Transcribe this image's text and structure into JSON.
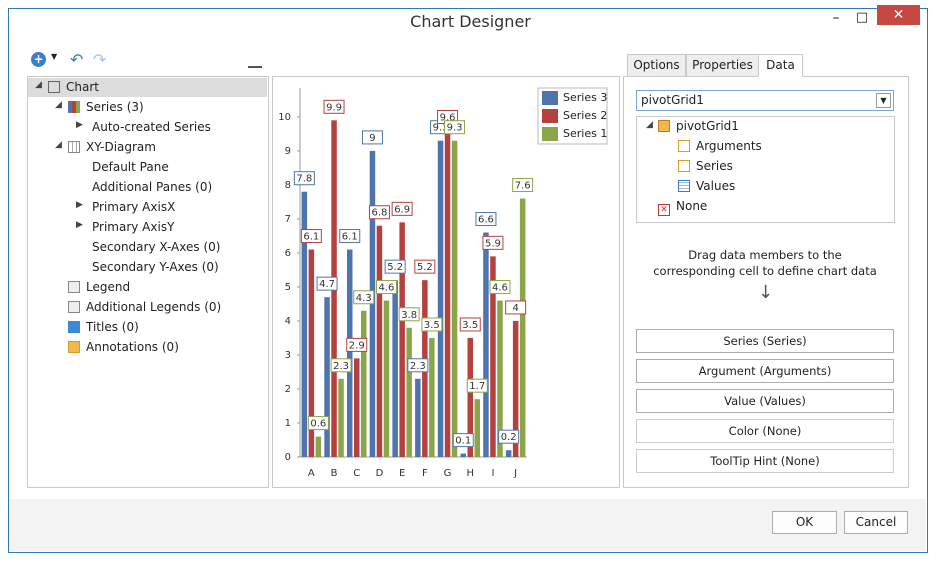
{
  "window": {
    "title": "Chart Designer"
  },
  "tree": [
    "Chart",
    "Series (3)",
    "Auto-created Series",
    "XY-Diagram",
    "Default Pane",
    "Additional Panes (0)",
    "Primary AxisX",
    "Primary AxisY",
    "Secondary X-Axes (0)",
    "Secondary Y-Axes (0)",
    "Legend",
    "Additional Legends (0)",
    "Titles (0)",
    "Annotations (0)"
  ],
  "tabs": [
    "Options",
    "Properties",
    "Data"
  ],
  "datasource": "pivotGrid1",
  "fields": [
    "pivotGrid1",
    "Arguments",
    "Series",
    "Values",
    "None"
  ],
  "hint": "Drag data members to the corresponding cell to define chart data",
  "bindings": [
    "Series (Series)",
    "Argument (Arguments)",
    "Value (Values)",
    "Color (None)",
    "ToolTip Hint (None)"
  ],
  "buttons": [
    "OK",
    "Cancel"
  ],
  "chart_data": {
    "type": "bar",
    "categories": [
      "A",
      "B",
      "C",
      "D",
      "E",
      "F",
      "G",
      "H",
      "I",
      "J"
    ],
    "series": [
      {
        "name": "Series 3",
        "color": "#4f74ad",
        "values": [
          7.8,
          4.7,
          6.1,
          9,
          5.2,
          2.3,
          9.3,
          0.1,
          6.6,
          0.2
        ]
      },
      {
        "name": "Series 2",
        "color": "#b5413f",
        "values": [
          6.1,
          9.9,
          2.9,
          6.8,
          6.9,
          5.2,
          9.6,
          3.5,
          5.9,
          4
        ]
      },
      {
        "name": "Series 1",
        "color": "#8ba64a",
        "values": [
          0.6,
          2.3,
          4.3,
          4.6,
          3.8,
          3.5,
          9.3,
          1.7,
          4.6,
          7.6
        ]
      }
    ],
    "ylim": [
      0,
      10.85
    ],
    "yticks": [
      0,
      1,
      2,
      3,
      4,
      5,
      6,
      7,
      8,
      9,
      10
    ],
    "legend": "top-right"
  }
}
